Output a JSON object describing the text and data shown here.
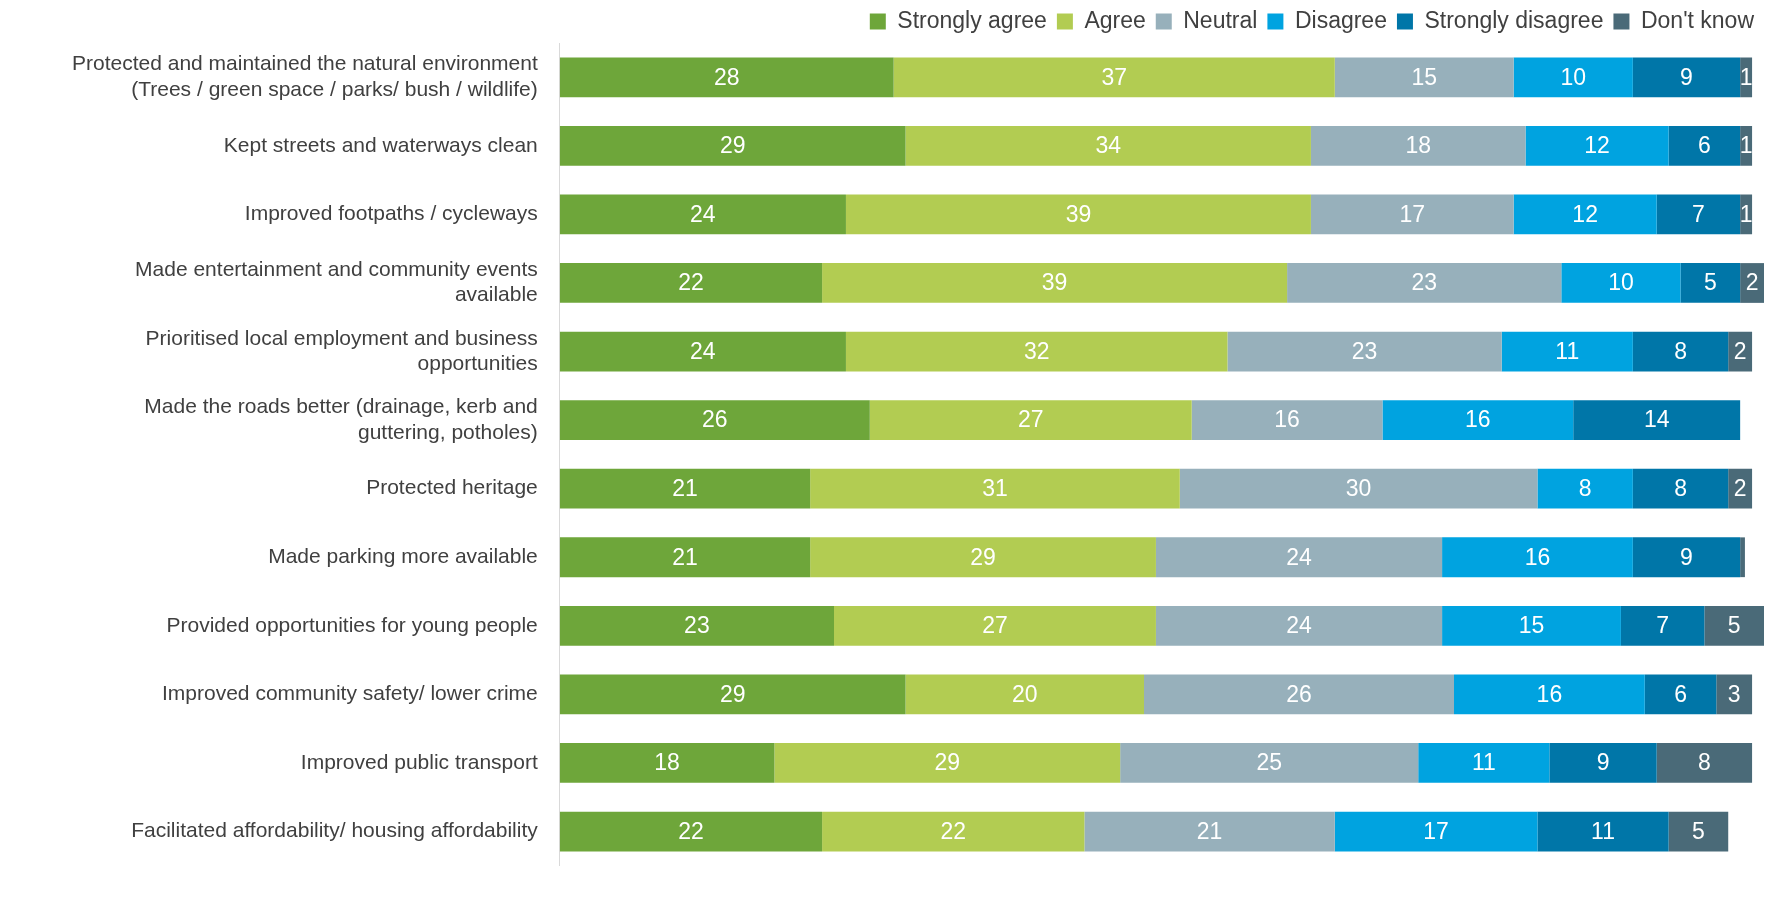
{
  "chart_data": {
    "type": "bar",
    "orientation": "horizontal",
    "stacked": true,
    "legend": "top right",
    "grid": false,
    "tick_labels": "y",
    "xlim": [
      0,
      101
    ],
    "categories": [
      "Protected and maintained the natural environment (Trees / green space / parks/ bush / wildlife)",
      "Kept streets and waterways clean",
      "Improved footpaths / cycleways",
      "Made entertainment and community events available",
      "Prioritised local employment and business opportunities",
      "Made the roads better (drainage, kerb and guttering, potholes)",
      "Protected heritage",
      "Made parking more available",
      "Provided opportunities for young people",
      "Improved community safety/ lower crime",
      "Improved public transport",
      "Facilitated affordability/ housing affordability"
    ],
    "series": [
      {
        "name": "Strongly agree",
        "color": "#6ea63a",
        "values": [
          28,
          29,
          24,
          22,
          24,
          26,
          21,
          21,
          23,
          29,
          18,
          22
        ],
        "value_labels": [
          "28",
          "29",
          "24",
          "22",
          "24",
          "26",
          "21",
          "21",
          "23",
          "29",
          "18",
          "22"
        ]
      },
      {
        "name": "Agree",
        "color": "#b2cc52",
        "values": [
          37,
          34,
          39,
          39,
          32,
          27,
          31,
          29,
          27,
          20,
          29,
          22
        ],
        "value_labels": [
          "37",
          "34",
          "39",
          "39",
          "32",
          "27",
          "31",
          "29",
          "27",
          "20",
          "29",
          "22"
        ]
      },
      {
        "name": "Neutral",
        "color": "#97b0bb",
        "values": [
          15,
          18,
          17,
          23,
          23,
          16,
          30,
          24,
          24,
          26,
          25,
          21
        ],
        "value_labels": [
          "15",
          "18",
          "17",
          "23",
          "23",
          "16",
          "30",
          "24",
          "24",
          "26",
          "25",
          "21"
        ]
      },
      {
        "name": "Disagree",
        "color": "#00a3e0",
        "values": [
          10,
          12,
          12,
          10,
          11,
          16,
          8,
          16,
          15,
          16,
          11,
          17
        ],
        "value_labels": [
          "10",
          "12",
          "12",
          "10",
          "11",
          "16",
          "8",
          "16",
          "15",
          "16",
          "11",
          "17"
        ]
      },
      {
        "name": "Strongly disagree",
        "color": "#0076a8",
        "values": [
          9,
          6,
          7,
          5,
          8,
          14,
          8,
          9,
          7,
          6,
          9,
          11
        ],
        "value_labels": [
          "9",
          "6",
          "7",
          "5",
          "8",
          "14",
          "8",
          "9",
          "7",
          "6",
          "9",
          "11"
        ]
      },
      {
        "name": "Don't know",
        "color": "#4a6a78",
        "values": [
          1,
          1,
          1,
          2,
          2,
          null,
          2,
          0.4,
          5,
          3,
          8,
          5
        ],
        "value_labels": [
          "1",
          "1",
          "1",
          "2",
          "2",
          null,
          "2",
          null,
          "5",
          "3",
          "8",
          "5"
        ]
      }
    ]
  }
}
